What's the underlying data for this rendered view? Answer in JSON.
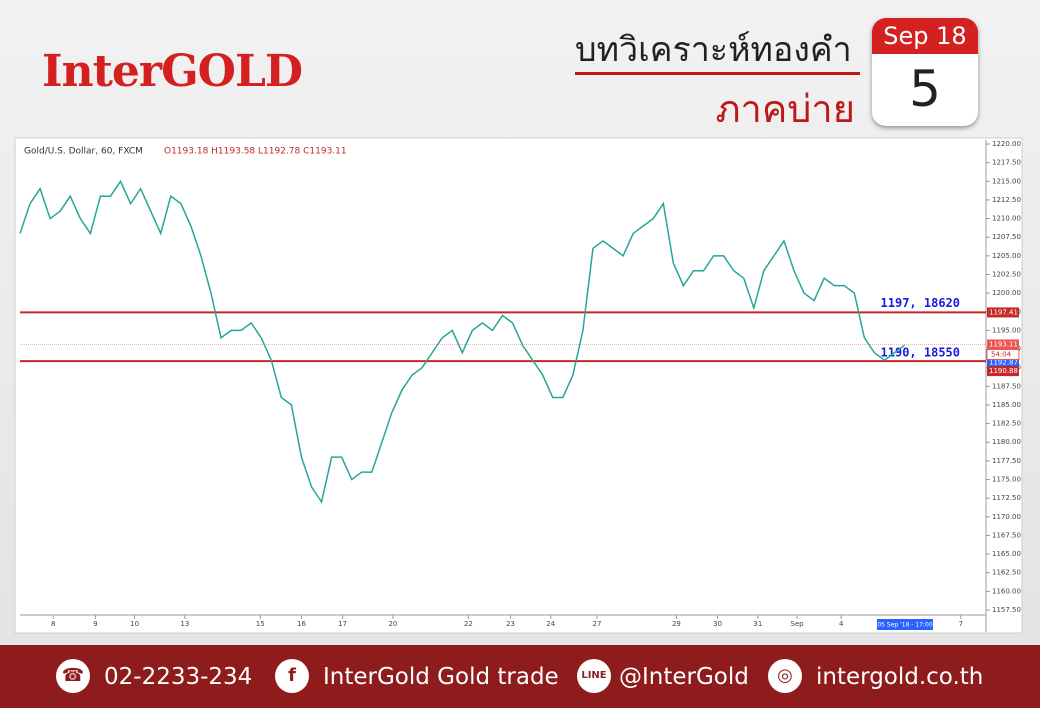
{
  "header": {
    "logo": "InterGOLD",
    "title": "บทวิเคราะห์ทองคำ",
    "subtitle": "ภาคบ่าย",
    "month": "Sep 18",
    "day": "5"
  },
  "footer": {
    "phone": "02-2233-234",
    "facebook": "InterGold Gold trade",
    "line": "@InterGold",
    "web": "intergold.co.th"
  },
  "chart_data": {
    "type": "line",
    "title": "Gold/U.S. Dollar, 60, FXCM",
    "ohlc": "O1193.18 H1193.58 L1192.78 C1193.11",
    "color": "#26a69a",
    "x": [
      0,
      1,
      2,
      3,
      4,
      5,
      6,
      7,
      8,
      9,
      10,
      11,
      12,
      13,
      14,
      15,
      16,
      17,
      18,
      19,
      20,
      21,
      22,
      23,
      24,
      25,
      26,
      27,
      28,
      29,
      30,
      31,
      32,
      33,
      34,
      35,
      36,
      37,
      38,
      39,
      40,
      41,
      42,
      43,
      44,
      45,
      46,
      47,
      48,
      49,
      50,
      51,
      52,
      53,
      54,
      55,
      56,
      57,
      58,
      59,
      60,
      61,
      62,
      63,
      64,
      65,
      66,
      67,
      68,
      69,
      70,
      71,
      72,
      73,
      74,
      75,
      76,
      77,
      78,
      79,
      80,
      81,
      82,
      83,
      84,
      85,
      86,
      87,
      88
    ],
    "values": [
      1208,
      1212,
      1214,
      1210,
      1211,
      1213,
      1210,
      1208,
      1213,
      1213,
      1215,
      1212,
      1214,
      1211,
      1208,
      1213,
      1212,
      1209,
      1205,
      1200,
      1194,
      1195,
      1195,
      1196,
      1194,
      1191,
      1186,
      1185,
      1178,
      1174,
      1172,
      1178,
      1178,
      1175,
      1176,
      1176,
      1180,
      1184,
      1187,
      1189,
      1190,
      1192,
      1194,
      1195,
      1192,
      1195,
      1196,
      1195,
      1197,
      1196,
      1193,
      1191,
      1189,
      1186,
      1186,
      1189,
      1195,
      1206,
      1207,
      1206,
      1205,
      1208,
      1209,
      1210,
      1212,
      1204,
      1201,
      1203,
      1203,
      1205,
      1205,
      1203,
      1202,
      1198,
      1203,
      1205,
      1207,
      1203,
      1200,
      1199,
      1202,
      1201,
      1201,
      1200,
      1194,
      1192,
      1191,
      1192,
      1193
    ],
    "xlim": [
      0,
      96
    ],
    "xticks": [
      {
        "value": 3.3,
        "label": "8"
      },
      {
        "value": 7.5,
        "label": "9"
      },
      {
        "value": 11.4,
        "label": "10"
      },
      {
        "value": 16.4,
        "label": "13"
      },
      {
        "value": 23.9,
        "label": "15"
      },
      {
        "value": 28,
        "label": "16"
      },
      {
        "value": 32.1,
        "label": "17"
      },
      {
        "value": 37.1,
        "label": "20"
      },
      {
        "value": 44.6,
        "label": "22"
      },
      {
        "value": 48.8,
        "label": "23"
      },
      {
        "value": 52.8,
        "label": "24"
      },
      {
        "value": 57.4,
        "label": "27"
      },
      {
        "value": 65.3,
        "label": "29"
      },
      {
        "value": 69.4,
        "label": "30"
      },
      {
        "value": 73.4,
        "label": "31"
      },
      {
        "value": 77.3,
        "label": "Sep"
      },
      {
        "value": 81.7,
        "label": "4"
      },
      {
        "value": 93.6,
        "label": "7"
      }
    ],
    "ylim": [
      1157.5,
      1220
    ],
    "yticks": [
      {
        "value": 1157.5,
        "label": "1157.50"
      },
      {
        "value": 1160,
        "label": "1160.00"
      },
      {
        "value": 1162.5,
        "label": "1162.50"
      },
      {
        "value": 1165,
        "label": "1165.00"
      },
      {
        "value": 1167.5,
        "label": "1167.50"
      },
      {
        "value": 1170,
        "label": "1170.00"
      },
      {
        "value": 1172.5,
        "label": "1172.50"
      },
      {
        "value": 1175,
        "label": "1175.00"
      },
      {
        "value": 1177.5,
        "label": "1177.50"
      },
      {
        "value": 1180,
        "label": "1180.00"
      },
      {
        "value": 1182.5,
        "label": "1182.50"
      },
      {
        "value": 1185,
        "label": "1185.00"
      },
      {
        "value": 1187.5,
        "label": "1187.50"
      },
      {
        "value": 1190,
        "label": "1190.00"
      },
      {
        "value": 1192.5,
        "label": "1192.50"
      },
      {
        "value": 1195,
        "label": "1195.00"
      },
      {
        "value": 1197.5,
        "label": "1197.50"
      },
      {
        "value": 1200,
        "label": "1200.00"
      },
      {
        "value": 1202.5,
        "label": "1202.50"
      },
      {
        "value": 1205,
        "label": "1205.00"
      },
      {
        "value": 1207.5,
        "label": "1207.50"
      },
      {
        "value": 1210,
        "label": "1210.00"
      },
      {
        "value": 1212.5,
        "label": "1212.50"
      },
      {
        "value": 1215,
        "label": "1215.00"
      },
      {
        "value": 1217.5,
        "label": "1217.50"
      },
      {
        "value": 1220,
        "label": "1220.00"
      }
    ],
    "levels": [
      {
        "value": 1197.41,
        "annotation": "1197, 18620",
        "color": "#c62828"
      },
      {
        "value": 1190.88,
        "annotation": "1190, 18550",
        "color": "#c62828"
      }
    ],
    "markers": [
      {
        "value": 1193.11,
        "color": "#ef5350"
      },
      {
        "value": 1192.87,
        "color": "#2962ff"
      }
    ],
    "countdown": "54:04",
    "date_badge": "05 Sep '18 - 17:00"
  }
}
